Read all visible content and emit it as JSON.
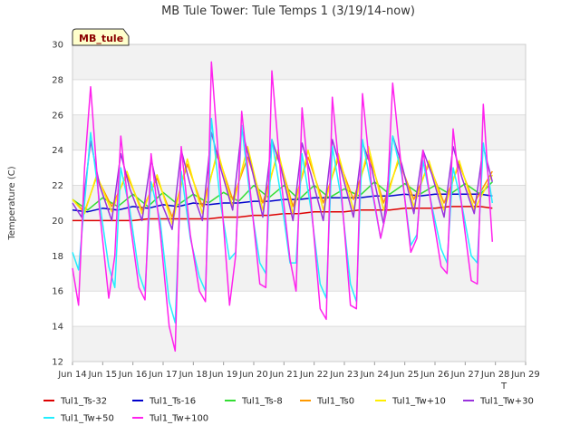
{
  "chart_data": {
    "type": "line",
    "title": "MB Tule Tower: Tule Temps 1 (3/19/14-now)",
    "ylabel": "Temperature (C)",
    "xlabel": "",
    "x_axis_suffix": "T",
    "tag_label": "MB_tule",
    "ylim": [
      12,
      30
    ],
    "xlim": [
      14,
      29
    ],
    "y_ticks": [
      "12",
      "14",
      "16",
      "18",
      "20",
      "22",
      "24",
      "26",
      "28",
      "30"
    ],
    "x_ticks": [
      "Jun 14",
      "Jun 15",
      "Jun 16",
      "Jun 17",
      "Jun 18",
      "Jun 19",
      "Jun 20",
      "Jun 21",
      "Jun 22",
      "Jun 23",
      "Jun 24",
      "Jun 25",
      "Jun 26",
      "Jun 27",
      "Jun 28",
      "Jun 29"
    ],
    "x_tick_values": [
      14,
      15,
      16,
      17,
      18,
      19,
      20,
      21,
      22,
      23,
      24,
      25,
      26,
      27,
      28,
      29
    ],
    "grid": "horizontal bands",
    "legend_placement": "bottom",
    "series": [
      {
        "name": "Tul1_Ts-32",
        "color": "#dd0000",
        "x": [
          14.0,
          14.5,
          15.0,
          15.5,
          16.0,
          16.5,
          17.0,
          17.5,
          18.0,
          18.5,
          19.0,
          19.5,
          20.0,
          20.5,
          21.0,
          21.5,
          22.0,
          22.5,
          23.0,
          23.5,
          24.0,
          24.5,
          25.0,
          25.5,
          26.0,
          26.5,
          27.0,
          27.5,
          27.9
        ],
        "y": [
          20.0,
          20.0,
          20.0,
          20.0,
          20.0,
          20.1,
          20.1,
          20.1,
          20.1,
          20.1,
          20.2,
          20.2,
          20.3,
          20.3,
          20.4,
          20.4,
          20.5,
          20.5,
          20.5,
          20.6,
          20.6,
          20.6,
          20.7,
          20.7,
          20.7,
          20.8,
          20.8,
          20.8,
          20.7
        ]
      },
      {
        "name": "Tul1_Ts-16",
        "color": "#0000cc",
        "x": [
          14.0,
          14.5,
          15.0,
          15.5,
          16.0,
          16.5,
          17.0,
          17.5,
          18.0,
          18.5,
          19.0,
          19.5,
          20.0,
          20.5,
          21.0,
          21.5,
          22.0,
          22.5,
          23.0,
          23.5,
          24.0,
          24.5,
          25.0,
          25.5,
          26.0,
          26.5,
          27.0,
          27.5,
          27.9
        ],
        "y": [
          20.6,
          20.5,
          20.7,
          20.6,
          20.8,
          20.7,
          20.9,
          20.8,
          21.0,
          20.9,
          21.0,
          21.0,
          21.1,
          21.1,
          21.2,
          21.2,
          21.3,
          21.3,
          21.3,
          21.3,
          21.4,
          21.4,
          21.5,
          21.4,
          21.5,
          21.5,
          21.5,
          21.5,
          21.4
        ]
      },
      {
        "name": "Tul1_Ts-8",
        "color": "#33dd33",
        "x": [
          14.0,
          14.5,
          15.0,
          15.5,
          16.0,
          16.5,
          17.0,
          17.5,
          18.0,
          18.5,
          19.0,
          19.5,
          20.0,
          20.5,
          21.0,
          21.5,
          22.0,
          22.5,
          23.0,
          23.5,
          24.0,
          24.5,
          25.0,
          25.5,
          26.0,
          26.5,
          27.0,
          27.5,
          27.9
        ],
        "y": [
          21.2,
          20.6,
          21.3,
          20.8,
          21.5,
          20.8,
          21.6,
          20.9,
          21.5,
          21.0,
          21.6,
          21.1,
          22.0,
          21.3,
          22.0,
          21.2,
          22.0,
          21.3,
          21.8,
          21.4,
          22.2,
          21.5,
          22.1,
          21.5,
          22.0,
          21.5,
          22.1,
          21.5,
          22.2
        ]
      },
      {
        "name": "Tul1_Ts0",
        "color": "#ff9900",
        "x": [
          14.0,
          14.4,
          14.8,
          15.3,
          15.8,
          16.3,
          16.8,
          17.3,
          17.8,
          18.3,
          18.8,
          19.3,
          19.8,
          20.3,
          20.8,
          21.3,
          21.8,
          22.3,
          22.8,
          23.3,
          23.8,
          24.3,
          24.8,
          25.3,
          25.8,
          26.3,
          26.8,
          27.3,
          27.9
        ],
        "y": [
          21.2,
          20.5,
          22.5,
          20.8,
          22.6,
          20.6,
          22.4,
          20.2,
          23.2,
          20.8,
          23.8,
          21.2,
          23.6,
          21.0,
          23.8,
          20.8,
          23.6,
          21.0,
          23.5,
          21.2,
          23.8,
          21.0,
          23.4,
          21.2,
          23.2,
          21.0,
          23.2,
          21.0,
          22.8
        ]
      },
      {
        "name": "Tul1_Tw+10",
        "color": "#ffee00",
        "x": [
          14.0,
          14.4,
          14.8,
          15.3,
          15.8,
          16.3,
          16.8,
          17.3,
          17.8,
          18.3,
          18.8,
          19.3,
          19.8,
          20.3,
          20.8,
          21.3,
          21.8,
          22.3,
          22.8,
          23.3,
          23.8,
          24.3,
          24.8,
          25.3,
          25.8,
          26.3,
          26.8,
          27.3,
          27.9
        ],
        "y": [
          21.2,
          20.4,
          22.6,
          20.5,
          22.8,
          20.4,
          22.6,
          19.8,
          23.5,
          20.4,
          24.0,
          20.8,
          24.2,
          20.6,
          24.0,
          20.4,
          24.0,
          20.6,
          23.8,
          20.6,
          24.2,
          20.6,
          23.6,
          20.8,
          23.4,
          20.6,
          23.4,
          20.6,
          22.6
        ]
      },
      {
        "name": "Tul1_Tw+30",
        "color": "#9933dd",
        "x": [
          14.0,
          14.3,
          14.6,
          14.9,
          15.3,
          15.6,
          15.9,
          16.3,
          16.6,
          16.9,
          17.3,
          17.6,
          17.9,
          18.3,
          18.6,
          18.9,
          19.3,
          19.6,
          19.9,
          20.3,
          20.6,
          20.9,
          21.3,
          21.6,
          21.9,
          22.3,
          22.6,
          22.9,
          23.3,
          23.6,
          23.9,
          24.3,
          24.6,
          24.9,
          25.3,
          25.6,
          25.9,
          26.3,
          26.6,
          26.9,
          27.3,
          27.6,
          27.9
        ],
        "y": [
          21.0,
          20.2,
          24.5,
          22.0,
          20.0,
          23.8,
          21.8,
          20.0,
          23.5,
          21.2,
          19.5,
          24.0,
          22.0,
          20.0,
          25.0,
          23.0,
          20.6,
          25.2,
          23.2,
          20.2,
          24.6,
          23.0,
          20.0,
          24.4,
          22.6,
          20.0,
          24.6,
          22.8,
          20.2,
          24.4,
          23.0,
          19.8,
          24.8,
          23.2,
          20.4,
          24.0,
          22.6,
          20.2,
          24.2,
          22.4,
          20.4,
          24.2,
          22.2
        ]
      },
      {
        "name": "Tul1_Tw+50",
        "color": "#22eeff",
        "x": [
          14.0,
          14.2,
          14.4,
          14.6,
          14.9,
          15.2,
          15.4,
          15.6,
          15.9,
          16.2,
          16.4,
          16.6,
          16.9,
          17.2,
          17.4,
          17.6,
          17.9,
          18.2,
          18.4,
          18.6,
          18.9,
          19.2,
          19.4,
          19.6,
          19.9,
          20.2,
          20.4,
          20.6,
          20.9,
          21.2,
          21.4,
          21.6,
          21.9,
          22.2,
          22.4,
          22.6,
          22.9,
          23.2,
          23.4,
          23.6,
          23.9,
          24.2,
          24.4,
          24.6,
          24.9,
          25.2,
          25.4,
          25.6,
          25.9,
          26.2,
          26.4,
          26.6,
          26.9,
          27.2,
          27.4,
          27.6,
          27.9
        ],
        "y": [
          18.2,
          17.2,
          21.0,
          25.0,
          21.0,
          17.4,
          16.2,
          23.0,
          20.6,
          17.0,
          16.0,
          22.2,
          20.0,
          15.4,
          14.2,
          22.8,
          19.0,
          16.8,
          16.0,
          25.8,
          21.0,
          17.8,
          18.2,
          25.4,
          21.0,
          17.6,
          17.0,
          24.6,
          21.4,
          17.6,
          17.6,
          23.8,
          20.6,
          16.4,
          15.6,
          24.2,
          21.2,
          16.4,
          15.4,
          24.6,
          21.8,
          19.0,
          20.6,
          24.8,
          22.6,
          18.6,
          19.2,
          23.4,
          20.8,
          18.4,
          17.6,
          23.0,
          20.8,
          18.0,
          17.6,
          24.4,
          21.0
        ]
      },
      {
        "name": "Tul1_Tw+100",
        "color": "#ff22ee",
        "x": [
          14.0,
          14.2,
          14.4,
          14.6,
          14.9,
          15.2,
          15.4,
          15.6,
          15.9,
          16.2,
          16.4,
          16.6,
          16.9,
          17.2,
          17.4,
          17.6,
          17.9,
          18.2,
          18.4,
          18.6,
          18.9,
          19.2,
          19.4,
          19.6,
          19.9,
          20.2,
          20.4,
          20.6,
          20.9,
          21.2,
          21.4,
          21.6,
          21.9,
          22.2,
          22.4,
          22.6,
          22.9,
          23.2,
          23.4,
          23.6,
          23.9,
          24.2,
          24.4,
          24.6,
          24.9,
          25.2,
          25.4,
          25.6,
          25.9,
          26.2,
          26.4,
          26.6,
          26.9,
          27.2,
          27.4,
          27.6,
          27.9
        ],
        "y": [
          17.3,
          15.2,
          23.0,
          27.6,
          20.5,
          15.6,
          18.0,
          24.8,
          20.0,
          16.2,
          15.5,
          23.8,
          19.4,
          14.0,
          12.6,
          24.2,
          19.2,
          16.0,
          15.4,
          29.0,
          22.0,
          15.2,
          18.0,
          26.2,
          21.4,
          16.4,
          16.2,
          28.5,
          22.4,
          17.8,
          16.0,
          26.4,
          21.0,
          15.0,
          14.4,
          27.0,
          21.6,
          15.2,
          15.0,
          27.2,
          22.0,
          19.0,
          20.6,
          27.8,
          22.8,
          18.2,
          19.0,
          24.0,
          20.6,
          17.4,
          17.0,
          25.2,
          20.6,
          16.6,
          16.4,
          26.6,
          18.8
        ]
      }
    ]
  }
}
